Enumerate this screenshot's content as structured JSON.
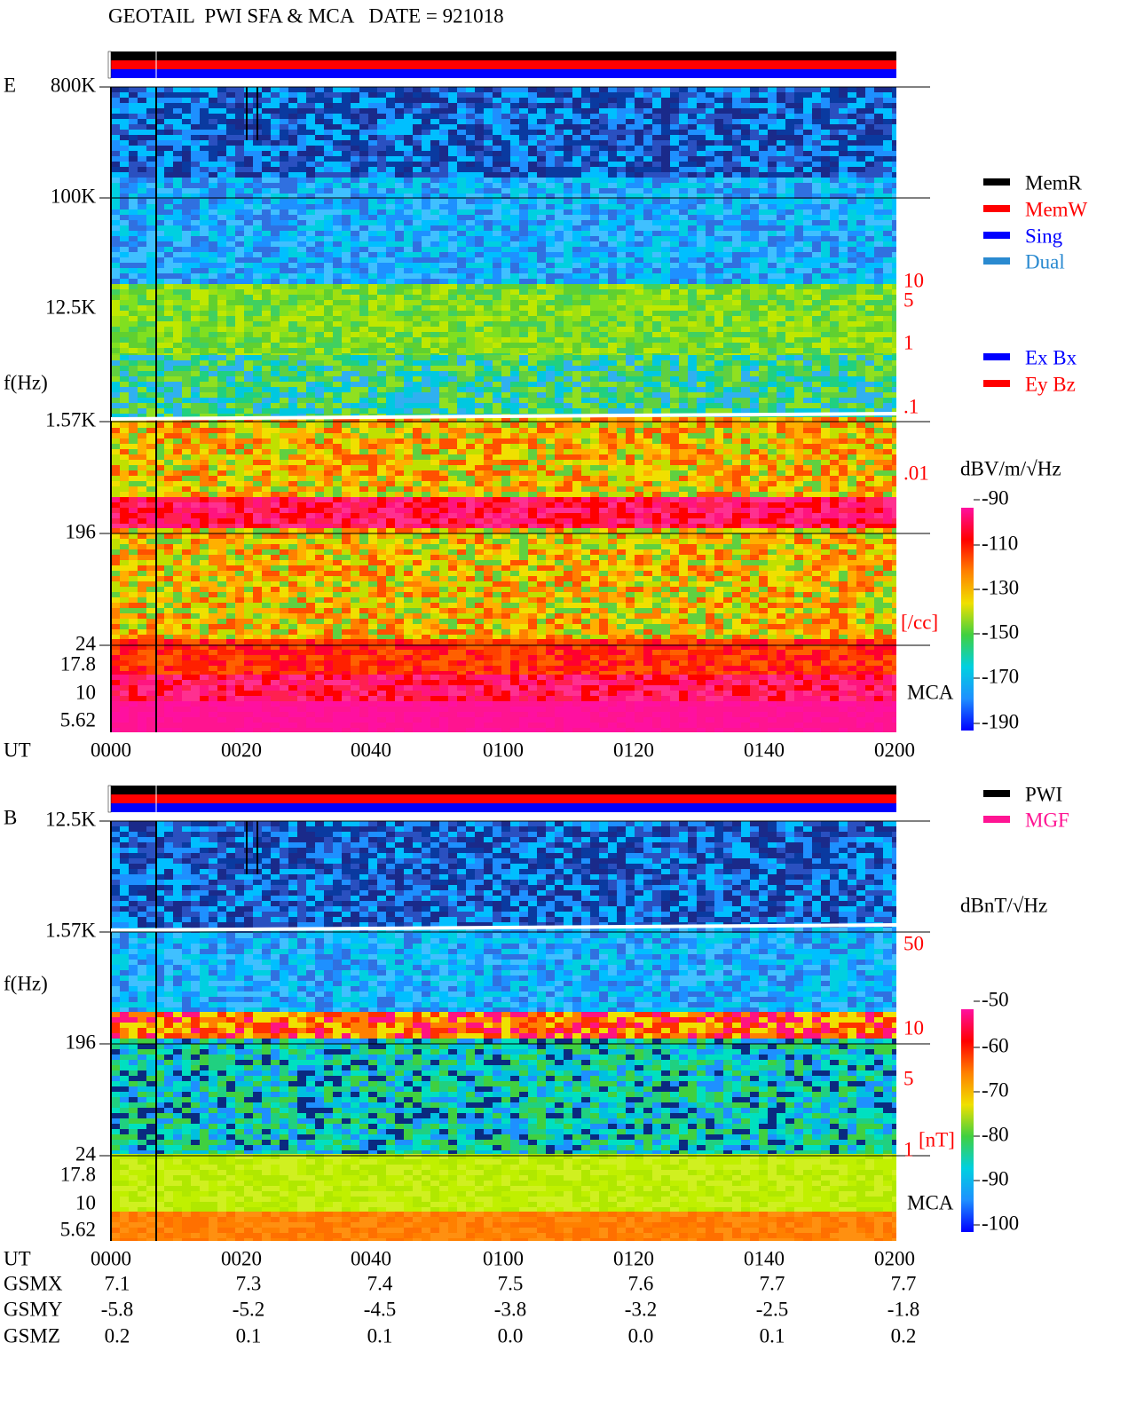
{
  "title": "GEOTAIL  PWI SFA & MCA   DATE = 921018",
  "panels": [
    {
      "label": "E",
      "freq_labels": [
        "800K",
        "100K",
        "12.5K",
        "1.57K",
        "196",
        "24",
        "17.8",
        "10",
        "5.62"
      ],
      "axis_label": "f(Hz)",
      "time_label": "UT",
      "times": [
        "0000",
        "0020",
        "0040",
        "0100",
        "0120",
        "0140",
        "0200"
      ],
      "right_labels": [
        "10",
        "5",
        "1",
        ".1",
        ".01",
        "[/cc]"
      ],
      "mca": "MCA",
      "legend": [
        {
          "name": "MemR",
          "color": "#000000"
        },
        {
          "name": "MemW",
          "color": "#ff0000"
        },
        {
          "name": "Sing",
          "color": "#0000ff"
        },
        {
          "name": "Dual",
          "color": "#2a8ad0"
        }
      ],
      "legend2": [
        {
          "name": "Ex Bx",
          "color": "#0000ff"
        },
        {
          "name": "Ey Bz",
          "color": "#ff0000"
        }
      ],
      "colorbar": {
        "label": "dBV/m/√Hz",
        "ticks": [
          "-90",
          "-110",
          "-130",
          "-150",
          "-170",
          "-190"
        ]
      }
    },
    {
      "label": "B",
      "freq_labels": [
        "12.5K",
        "1.57K",
        "196",
        "24",
        "17.8",
        "10",
        "5.62"
      ],
      "axis_label": "f(Hz)",
      "time_label": "UT",
      "times": [
        "0000",
        "0020",
        "0040",
        "0100",
        "0120",
        "0140",
        "0200"
      ],
      "right_labels": [
        "50",
        "10",
        "5",
        "1",
        "[nT]"
      ],
      "mca": "MCA",
      "legend": [
        {
          "name": "PWI",
          "color": "#000000"
        },
        {
          "name": "MGF",
          "color": "#ff1493"
        }
      ],
      "colorbar": {
        "label": "dBnT/√Hz",
        "ticks": [
          "-50",
          "-60",
          "-70",
          "-80",
          "-90",
          "-100"
        ]
      }
    }
  ],
  "orbit": {
    "rows": [
      {
        "name": "GSMX",
        "values": [
          "7.1",
          "7.3",
          "7.4",
          "7.5",
          "7.6",
          "7.7",
          "7.7"
        ]
      },
      {
        "name": "GSMY",
        "values": [
          "-5.8",
          "-5.2",
          "-4.5",
          "-3.8",
          "-3.2",
          "-2.5",
          "-1.8"
        ]
      },
      {
        "name": "GSMZ",
        "values": [
          "0.2",
          "0.1",
          "0.1",
          "0.0",
          "0.0",
          "0.1",
          "0.2"
        ]
      }
    ]
  }
}
